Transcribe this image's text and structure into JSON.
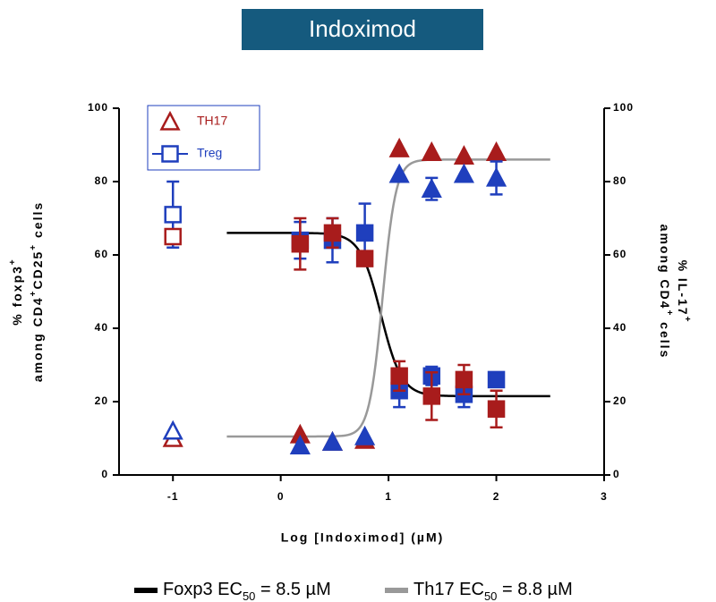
{
  "chart_data": {
    "type": "scatter",
    "title": "Indoximod",
    "x_label": "Log [Indoximod] (µM)",
    "y_label": [
      [
        "% foxp3",
        "+"
      ],
      [
        "among CD4",
        "+",
        "CD25",
        "+",
        " cells"
      ]
    ],
    "y2_label": [
      [
        "% IL-17",
        "+"
      ],
      [
        "among CD4",
        "+",
        " cells"
      ]
    ],
    "xlim": [
      -1.5,
      3
    ],
    "xticks": [
      -1,
      0,
      1,
      2,
      3
    ],
    "ylim": [
      0,
      100
    ],
    "yticks": [
      0,
      20,
      40,
      60,
      80,
      100
    ],
    "y2lim": [
      0,
      100
    ],
    "y2ticks": [
      0,
      20,
      40,
      60,
      80,
      100
    ],
    "series": [
      {
        "name": "TH17",
        "color": "#a81c1c",
        "marker": "triangle",
        "filled": false,
        "axis": "y2",
        "x": [
          -1
        ],
        "values": [
          10
        ],
        "errors": [
          null
        ]
      },
      {
        "name": "Treg",
        "color": "#1f3fbd",
        "marker": "square",
        "filled": false,
        "axis": "y",
        "x": [
          -1
        ],
        "values": [
          71
        ],
        "errors": [
          9
        ]
      },
      {
        "color": "#a81c1c",
        "marker": "square",
        "filled": false,
        "axis": "y",
        "x": [
          -1
        ],
        "values": [
          65
        ],
        "errors": [
          null
        ]
      },
      {
        "color": "#1f3fbd",
        "marker": "triangle",
        "filled": false,
        "axis": "y2",
        "x": [
          -1
        ],
        "values": [
          12
        ],
        "errors": [
          null
        ]
      },
      {
        "color": "#1f3fbd",
        "marker": "square",
        "filled": true,
        "axis": "y",
        "x": [
          0.18,
          0.48,
          0.78,
          1.1,
          1.4,
          1.7,
          2.0
        ],
        "values": [
          64,
          64,
          66,
          23,
          27,
          22,
          26
        ],
        "errors": [
          5,
          6,
          8,
          4.5,
          2.5,
          3.5,
          2
        ]
      },
      {
        "color": "#a81c1c",
        "marker": "square",
        "filled": true,
        "axis": "y",
        "x": [
          0.18,
          0.48,
          0.78,
          1.1,
          1.4,
          1.7,
          2.0
        ],
        "values": [
          63,
          66,
          59,
          27,
          21.5,
          26,
          18
        ],
        "errors": [
          7,
          4,
          2,
          4,
          6.5,
          4,
          5
        ]
      },
      {
        "color": "#a81c1c",
        "marker": "triangle",
        "filled": true,
        "axis": "y2",
        "x": [
          0.18,
          0.48,
          0.78,
          1.1,
          1.4,
          1.7,
          2.0
        ],
        "values": [
          11,
          9,
          9.5,
          89,
          88,
          87,
          88
        ],
        "errors": [
          null,
          null,
          null,
          null,
          null,
          null,
          null
        ]
      },
      {
        "color": "#1f3fbd",
        "marker": "triangle",
        "filled": true,
        "axis": "y2",
        "x": [
          0.18,
          0.48,
          0.78,
          1.1,
          1.4,
          1.7,
          2.0
        ],
        "values": [
          8,
          9,
          10.5,
          82,
          78,
          82,
          81
        ],
        "errors": [
          null,
          null,
          null,
          null,
          3,
          null,
          4.5
        ]
      }
    ],
    "fits": [
      {
        "text": [
          "Foxp3 EC",
          "50",
          " = 8.5 µM"
        ],
        "color": "#000000",
        "axis": "y",
        "ec50": 8.5,
        "bottom": 21.5,
        "top": 66,
        "hill": -4.5,
        "x": [
          -0.5,
          2.5
        ]
      },
      {
        "text": [
          "Th17 EC",
          "50",
          " = 8.8 µM"
        ],
        "color": "#999999",
        "axis": "y2",
        "ec50": 8.8,
        "bottom": 10.5,
        "top": 86,
        "hill": 7,
        "x": [
          -0.5,
          2.5
        ]
      }
    ]
  }
}
